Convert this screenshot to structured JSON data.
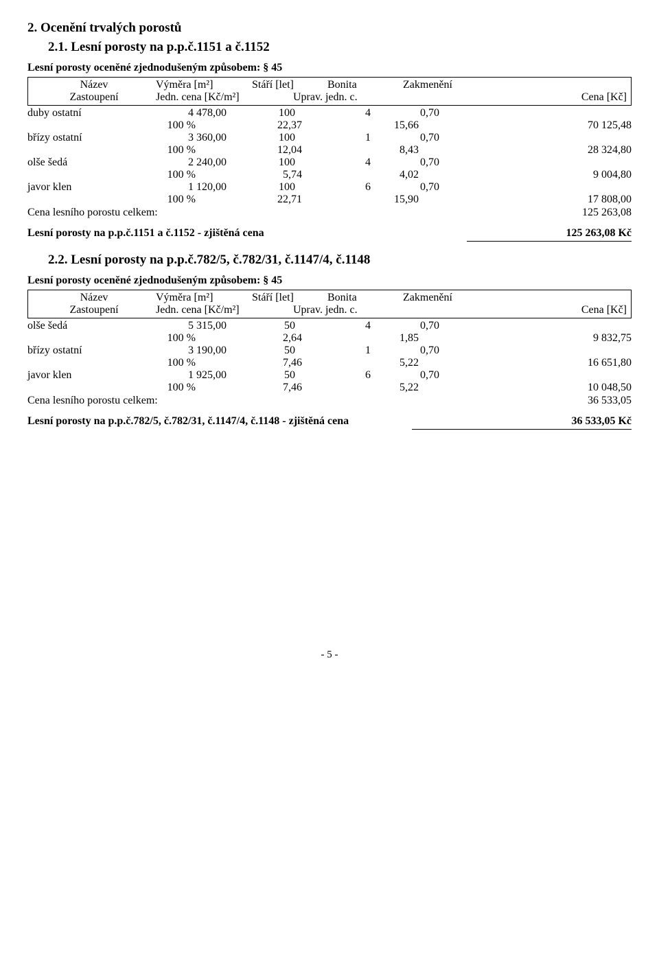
{
  "section2": {
    "title": "2. Ocenění trvalých porostů",
    "sub21": {
      "title": "2.1. Lesní porosty na p.p.č.1151 a č.1152",
      "intro": "Lesní porosty oceněné zjednodušeným způsobem: § 45",
      "header": {
        "r1": {
          "nazev": "Název",
          "vymera": "Výměra [m²]",
          "stari": "Stáří [let]",
          "bonita": "Bonita",
          "zakmen": "Zakmenění"
        },
        "r2": {
          "zast": "Zastoupení",
          "cena": "Jedn. cena [Kč/m²]",
          "uprav": "Uprav. jedn. c.",
          "cenakc": "Cena [Kč]"
        }
      },
      "rows": [
        {
          "name": "duby ostatní",
          "vymera": "4 478,00",
          "stari": "100",
          "bonita": "4",
          "zakmen": "0,70",
          "pct": "100 %",
          "jedn": "22,37",
          "uprav": "15,66",
          "cena": "70 125,48"
        },
        {
          "name": "břízy ostatní",
          "vymera": "3 360,00",
          "stari": "100",
          "bonita": "1",
          "zakmen": "0,70",
          "pct": "100 %",
          "jedn": "12,04",
          "uprav": "8,43",
          "cena": "28 324,80"
        },
        {
          "name": "olše šedá",
          "vymera": "2 240,00",
          "stari": "100",
          "bonita": "4",
          "zakmen": "0,70",
          "pct": "100 %",
          "jedn": "5,74",
          "uprav": "4,02",
          "cena": "9 004,80"
        },
        {
          "name": "javor klen",
          "vymera": "1 120,00",
          "stari": "100",
          "bonita": "6",
          "zakmen": "0,70",
          "pct": "100 %",
          "jedn": "22,71",
          "uprav": "15,90",
          "cena": "17 808,00"
        }
      ],
      "total": {
        "label": "Cena lesního porostu celkem:",
        "val": "125 263,08"
      },
      "result": {
        "label": "Lesní porosty na p.p.č.1151 a č.1152 - zjištěná cena",
        "val": "125 263,08 Kč"
      }
    },
    "sub22": {
      "title": "2.2. Lesní porosty na p.p.č.782/5, č.782/31, č.1147/4, č.1148",
      "intro": "Lesní porosty oceněné zjednodušeným způsobem: § 45",
      "header": {
        "r1": {
          "nazev": "Název",
          "vymera": "Výměra [m²]",
          "stari": "Stáří [let]",
          "bonita": "Bonita",
          "zakmen": "Zakmenění"
        },
        "r2": {
          "zast": "Zastoupení",
          "cena": "Jedn. cena [Kč/m²]",
          "uprav": "Uprav. jedn. c.",
          "cenakc": "Cena [Kč]"
        }
      },
      "rows": [
        {
          "name": "olše šedá",
          "vymera": "5 315,00",
          "stari": "50",
          "bonita": "4",
          "zakmen": "0,70",
          "pct": "100 %",
          "jedn": "2,64",
          "uprav": "1,85",
          "cena": "9 832,75"
        },
        {
          "name": "břízy ostatní",
          "vymera": "3 190,00",
          "stari": "50",
          "bonita": "1",
          "zakmen": "0,70",
          "pct": "100 %",
          "jedn": "7,46",
          "uprav": "5,22",
          "cena": "16 651,80"
        },
        {
          "name": "javor klen",
          "vymera": "1 925,00",
          "stari": "50",
          "bonita": "6",
          "zakmen": "0,70",
          "pct": "100 %",
          "jedn": "7,46",
          "uprav": "5,22",
          "cena": "10 048,50"
        }
      ],
      "total": {
        "label": "Cena lesního porostu celkem:",
        "val": "36 533,05"
      },
      "result": {
        "label": "Lesní porosty na p.p.č.782/5, č.782/31, č.1147/4, č.1148 - zjištěná cena",
        "val": "36 533,05 Kč"
      }
    }
  },
  "page": "- 5 -"
}
